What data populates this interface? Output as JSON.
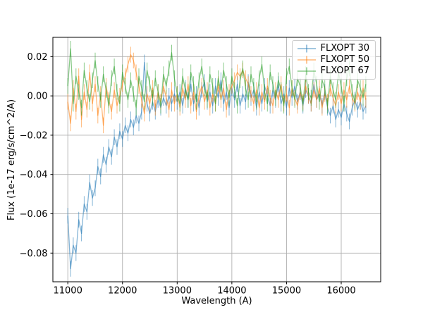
{
  "figure": {
    "background": "#ffffff"
  },
  "chart_data": {
    "type": "line",
    "title": "",
    "xlabel": "Wavelength (A)",
    "ylabel": "Flux (1e-17 erg/s/cm^2/A)",
    "xlim": [
      10727,
      16722
    ],
    "ylim": [
      -0.0946,
      0.0298
    ],
    "grid": true,
    "grid_color": "#b0b0b0",
    "frame_color": "#000000",
    "legend_position": "upper right",
    "x_ticks": {
      "values": [
        11000,
        12000,
        13000,
        14000,
        15000,
        16000
      ],
      "labels": [
        "11000",
        "12000",
        "13000",
        "14000",
        "15000",
        "16000"
      ]
    },
    "y_ticks": {
      "values": [
        0.02,
        0.0,
        -0.02,
        -0.04,
        -0.06,
        -0.08
      ],
      "labels": [
        "0.02",
        "0.00",
        "−0.02",
        "−0.04",
        "−0.06",
        "−0.08"
      ]
    },
    "x_start": 11000,
    "x_step": 50,
    "series": [
      {
        "name": "FLXOPT 30",
        "color": "#1f77b4",
        "alpha": 0.55,
        "yerr": 0.004,
        "values": [
          -0.061,
          -0.088,
          -0.076,
          -0.08,
          -0.063,
          -0.07,
          -0.055,
          -0.059,
          -0.044,
          -0.052,
          -0.047,
          -0.036,
          -0.041,
          -0.03,
          -0.035,
          -0.026,
          -0.031,
          -0.021,
          -0.026,
          -0.018,
          -0.022,
          -0.015,
          -0.019,
          -0.012,
          -0.016,
          -0.01,
          -0.014,
          -0.008,
          0.017,
          -0.004,
          -0.009,
          -0.003,
          -0.008,
          -0.002,
          -0.006,
          -0.001,
          -0.005,
          0.0,
          -0.004,
          0.001,
          -0.003,
          0.002,
          -0.005,
          0.004,
          -0.002,
          0.006,
          -0.004,
          0.001,
          -0.006,
          0.003,
          0.007,
          -0.003,
          0.002,
          -0.005,
          0.005,
          -0.001,
          0.008,
          -0.004,
          0.002,
          -0.006,
          0.004,
          -0.002,
          0.006,
          -0.005,
          0.001,
          -0.003,
          0.007,
          -0.001,
          0.003,
          -0.006,
          0.002,
          -0.004,
          0.005,
          0.0,
          -0.005,
          0.003,
          -0.002,
          0.006,
          -0.004,
          0.001,
          -0.006,
          0.004,
          -0.001,
          0.005,
          -0.003,
          0.002,
          -0.005,
          0.003,
          0.0,
          -0.004,
          0.006,
          -0.002,
          0.001,
          -0.005,
          0.002,
          -0.006,
          -0.01,
          -0.005,
          -0.012,
          -0.007,
          -0.011,
          -0.004,
          -0.009,
          -0.013,
          -0.006,
          -0.002,
          -0.007,
          -0.003,
          -0.008,
          -0.005
        ]
      },
      {
        "name": "FLXOPT 50",
        "color": "#ff7f0e",
        "alpha": 0.55,
        "yerr": 0.004,
        "values": [
          -0.003,
          -0.014,
          0.004,
          -0.008,
          0.01,
          -0.012,
          0.002,
          -0.007,
          0.012,
          -0.004,
          0.006,
          -0.01,
          0.001,
          -0.015,
          0.005,
          -0.002,
          -0.008,
          0.003,
          -0.005,
          0.0,
          0.006,
          0.01,
          0.016,
          0.021,
          0.018,
          0.012,
          0.005,
          -0.002,
          -0.009,
          0.001,
          -0.004,
          0.004,
          -0.006,
          0.002,
          -0.003,
          0.005,
          -0.001,
          -0.007,
          0.003,
          -0.004,
          0.001,
          -0.006,
          0.004,
          -0.002,
          0.006,
          -0.005,
          0.002,
          -0.008,
          0.0,
          0.005,
          -0.003,
          0.003,
          -0.006,
          0.001,
          -0.004,
          0.006,
          -0.002,
          0.004,
          -0.007,
          0.002,
          0.005,
          0.008,
          0.012,
          0.01,
          0.013,
          0.009,
          0.006,
          0.001,
          -0.004,
          0.003,
          -0.006,
          0.002,
          -0.003,
          0.005,
          -0.001,
          -0.005,
          0.003,
          -0.002,
          0.006,
          -0.004,
          0.001,
          -0.006,
          0.004,
          -0.001,
          -0.005,
          0.002,
          -0.003,
          0.005,
          0.0,
          -0.004,
          0.003,
          -0.002,
          0.004,
          -0.006,
          0.001,
          -0.003,
          0.004,
          -0.001,
          -0.005,
          0.002,
          -0.004,
          0.003,
          -0.002,
          0.005,
          -0.001,
          -0.004,
          0.002,
          -0.003,
          0.004,
          -0.002
        ]
      },
      {
        "name": "FLXOPT 67",
        "color": "#2ca02c",
        "alpha": 0.55,
        "yerr": 0.004,
        "values": [
          0.005,
          0.024,
          -0.004,
          0.01,
          0.002,
          -0.006,
          0.013,
          0.004,
          -0.003,
          0.008,
          0.018,
          0.006,
          -0.002,
          0.011,
          0.003,
          -0.005,
          0.009,
          0.015,
          0.002,
          -0.004,
          0.012,
          0.005,
          -0.002,
          0.008,
          0.001,
          -0.006,
          0.01,
          0.004,
          -0.003,
          0.013,
          0.006,
          -0.001,
          0.009,
          0.002,
          -0.005,
          0.011,
          0.005,
          0.014,
          0.022,
          0.009,
          0.001,
          -0.004,
          0.01,
          0.003,
          -0.002,
          0.012,
          0.006,
          -0.003,
          0.008,
          0.015,
          0.004,
          -0.002,
          0.011,
          0.005,
          -0.004,
          0.009,
          0.002,
          0.013,
          0.006,
          -0.001,
          0.01,
          0.003,
          -0.005,
          0.008,
          0.014,
          0.004,
          -0.002,
          0.011,
          0.005,
          -0.003,
          0.009,
          0.016,
          0.002,
          -0.004,
          0.012,
          0.006,
          -0.001,
          0.008,
          0.003,
          -0.005,
          0.01,
          0.015,
          0.004,
          -0.002,
          0.009,
          0.005,
          -0.004,
          0.011,
          0.002,
          -0.001,
          0.013,
          0.006,
          -0.003,
          0.008,
          0.004,
          -0.005,
          0.01,
          0.003,
          -0.002,
          0.012,
          0.005,
          -0.004,
          0.009,
          0.014,
          0.002,
          -0.003,
          0.008,
          0.004,
          -0.001,
          0.006
        ]
      }
    ]
  }
}
